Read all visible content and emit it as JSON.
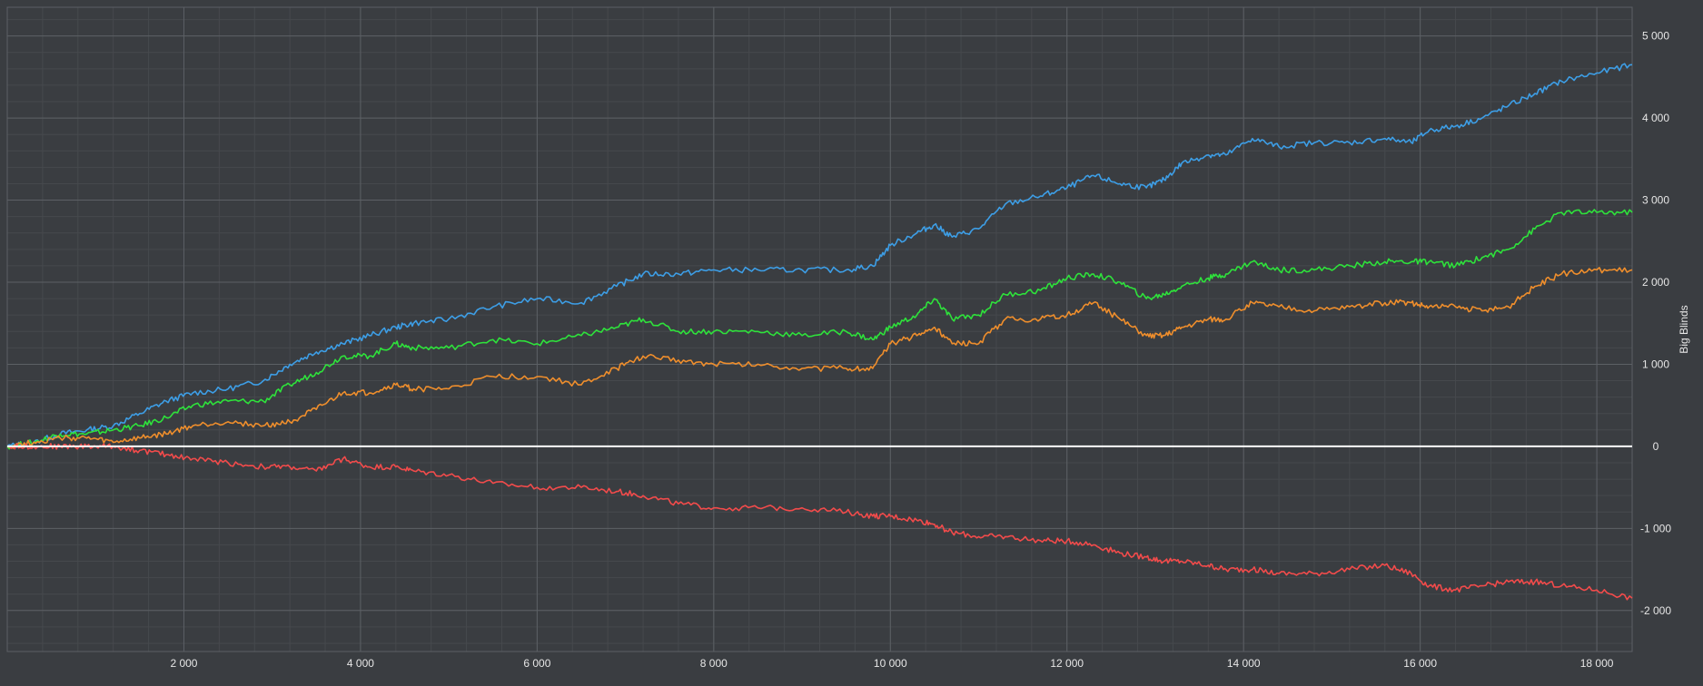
{
  "chart_data": {
    "type": "line",
    "title": "",
    "xlabel": "",
    "ylabel": "Big Blinds",
    "xlim": [
      0,
      18400
    ],
    "ylim": [
      -2500,
      5350
    ],
    "grid": true,
    "legend": "none",
    "x_ticks": [
      2000,
      4000,
      6000,
      8000,
      10000,
      12000,
      14000,
      16000,
      18000
    ],
    "x_tick_labels": [
      "2 000",
      "4 000",
      "6 000",
      "8 000",
      "10 000",
      "12 000",
      "14 000",
      "16 000",
      "18 000"
    ],
    "y_ticks": [
      -2000,
      -1000,
      0,
      1000,
      2000,
      3000,
      4000,
      5000
    ],
    "y_tick_labels": [
      "-2 000",
      "-1 000",
      "0",
      "1 000",
      "2 000",
      "3 000",
      "4 000",
      "5 000"
    ],
    "colors": {
      "background": "#3a3d41",
      "grid_major": "#5c6065",
      "grid_minor": "#46494d",
      "zero_line": "#ffffff",
      "axis_text": "#e6e6e6"
    },
    "series": [
      {
        "color": "#3d9ee6",
        "x": [
          0,
          300,
          600,
          900,
          1200,
          1500,
          1800,
          2100,
          2500,
          2900,
          3200,
          3500,
          3800,
          4100,
          4400,
          4600,
          5000,
          5500,
          6000,
          6500,
          6900,
          7200,
          7600,
          8000,
          8500,
          9000,
          9500,
          9800,
          10000,
          10300,
          10500,
          10700,
          11000,
          11300,
          11700,
          12000,
          12300,
          12600,
          12900,
          13100,
          13300,
          13600,
          13800,
          14100,
          14400,
          14800,
          15200,
          15600,
          15900,
          16100,
          16400,
          16700,
          17000,
          17300,
          17600,
          18000,
          18400
        ],
        "y": [
          0,
          50,
          150,
          200,
          250,
          400,
          550,
          650,
          700,
          800,
          1000,
          1150,
          1250,
          1350,
          1450,
          1500,
          1550,
          1700,
          1800,
          1750,
          1950,
          2100,
          2100,
          2150,
          2150,
          2150,
          2150,
          2200,
          2450,
          2600,
          2700,
          2550,
          2650,
          2950,
          3050,
          3150,
          3300,
          3200,
          3150,
          3250,
          3450,
          3550,
          3550,
          3750,
          3650,
          3700,
          3700,
          3750,
          3700,
          3850,
          3900,
          4000,
          4150,
          4300,
          4450,
          4550,
          4650
        ]
      },
      {
        "color": "#2ee23b",
        "x": [
          0,
          300,
          600,
          900,
          1200,
          1500,
          1800,
          2100,
          2500,
          2900,
          3200,
          3500,
          3800,
          4100,
          4400,
          4600,
          5000,
          5500,
          6000,
          6500,
          6900,
          7200,
          7600,
          8000,
          8500,
          9000,
          9500,
          9800,
          10000,
          10300,
          10500,
          10700,
          11000,
          11300,
          11700,
          12000,
          12300,
          12600,
          12900,
          13100,
          13300,
          13600,
          13800,
          14100,
          14400,
          14800,
          15200,
          15600,
          15900,
          16100,
          16400,
          16700,
          17000,
          17300,
          17600,
          18000,
          18400
        ],
        "y": [
          0,
          50,
          150,
          150,
          200,
          250,
          350,
          500,
          550,
          550,
          750,
          900,
          1100,
          1100,
          1250,
          1200,
          1200,
          1300,
          1250,
          1350,
          1450,
          1550,
          1400,
          1400,
          1400,
          1350,
          1400,
          1300,
          1450,
          1600,
          1800,
          1550,
          1600,
          1850,
          1900,
          2050,
          2100,
          2000,
          1800,
          1850,
          1950,
          2050,
          2100,
          2250,
          2150,
          2150,
          2200,
          2250,
          2250,
          2250,
          2200,
          2300,
          2400,
          2650,
          2850,
          2850,
          2850
        ]
      },
      {
        "color": "#ef8e2c",
        "x": [
          0,
          300,
          600,
          900,
          1200,
          1500,
          1800,
          2100,
          2500,
          2900,
          3200,
          3500,
          3800,
          4100,
          4400,
          4600,
          5000,
          5500,
          6000,
          6500,
          6900,
          7200,
          7600,
          8000,
          8500,
          9000,
          9500,
          9800,
          10000,
          10300,
          10500,
          10700,
          11000,
          11300,
          11700,
          12000,
          12300,
          12600,
          12900,
          13100,
          13300,
          13600,
          13800,
          14100,
          14400,
          14800,
          15200,
          15600,
          15900,
          16100,
          16400,
          16700,
          17000,
          17300,
          17600,
          18000,
          18400
        ],
        "y": [
          0,
          50,
          100,
          100,
          50,
          100,
          150,
          250,
          300,
          250,
          300,
          450,
          650,
          650,
          750,
          700,
          700,
          850,
          850,
          750,
          950,
          1100,
          1050,
          1000,
          1000,
          950,
          950,
          950,
          1250,
          1350,
          1450,
          1250,
          1250,
          1550,
          1550,
          1600,
          1750,
          1550,
          1350,
          1350,
          1450,
          1550,
          1550,
          1750,
          1700,
          1650,
          1700,
          1750,
          1750,
          1700,
          1700,
          1650,
          1700,
          1950,
          2100,
          2150,
          2150
        ]
      },
      {
        "color": "#f24b4b",
        "x": [
          0,
          300,
          600,
          900,
          1200,
          1500,
          1800,
          2100,
          2500,
          2900,
          3200,
          3500,
          3800,
          4100,
          4400,
          4600,
          5000,
          5500,
          6000,
          6500,
          6900,
          7200,
          7600,
          8000,
          8500,
          9000,
          9500,
          9800,
          10000,
          10300,
          10500,
          10700,
          11000,
          11300,
          11700,
          12000,
          12300,
          12600,
          12900,
          13100,
          13300,
          13600,
          13800,
          14100,
          14400,
          14800,
          15200,
          15600,
          15900,
          16100,
          16400,
          16700,
          17000,
          17300,
          17600,
          18000,
          18400
        ],
        "y": [
          0,
          0,
          0,
          0,
          0,
          -50,
          -100,
          -150,
          -200,
          -250,
          -250,
          -300,
          -150,
          -250,
          -250,
          -300,
          -350,
          -450,
          -500,
          -500,
          -550,
          -600,
          -700,
          -750,
          -750,
          -750,
          -800,
          -850,
          -850,
          -900,
          -950,
          -1050,
          -1100,
          -1100,
          -1150,
          -1150,
          -1200,
          -1300,
          -1350,
          -1400,
          -1400,
          -1450,
          -1500,
          -1500,
          -1550,
          -1550,
          -1500,
          -1450,
          -1550,
          -1700,
          -1750,
          -1700,
          -1650,
          -1650,
          -1700,
          -1750,
          -1850
        ]
      }
    ]
  }
}
